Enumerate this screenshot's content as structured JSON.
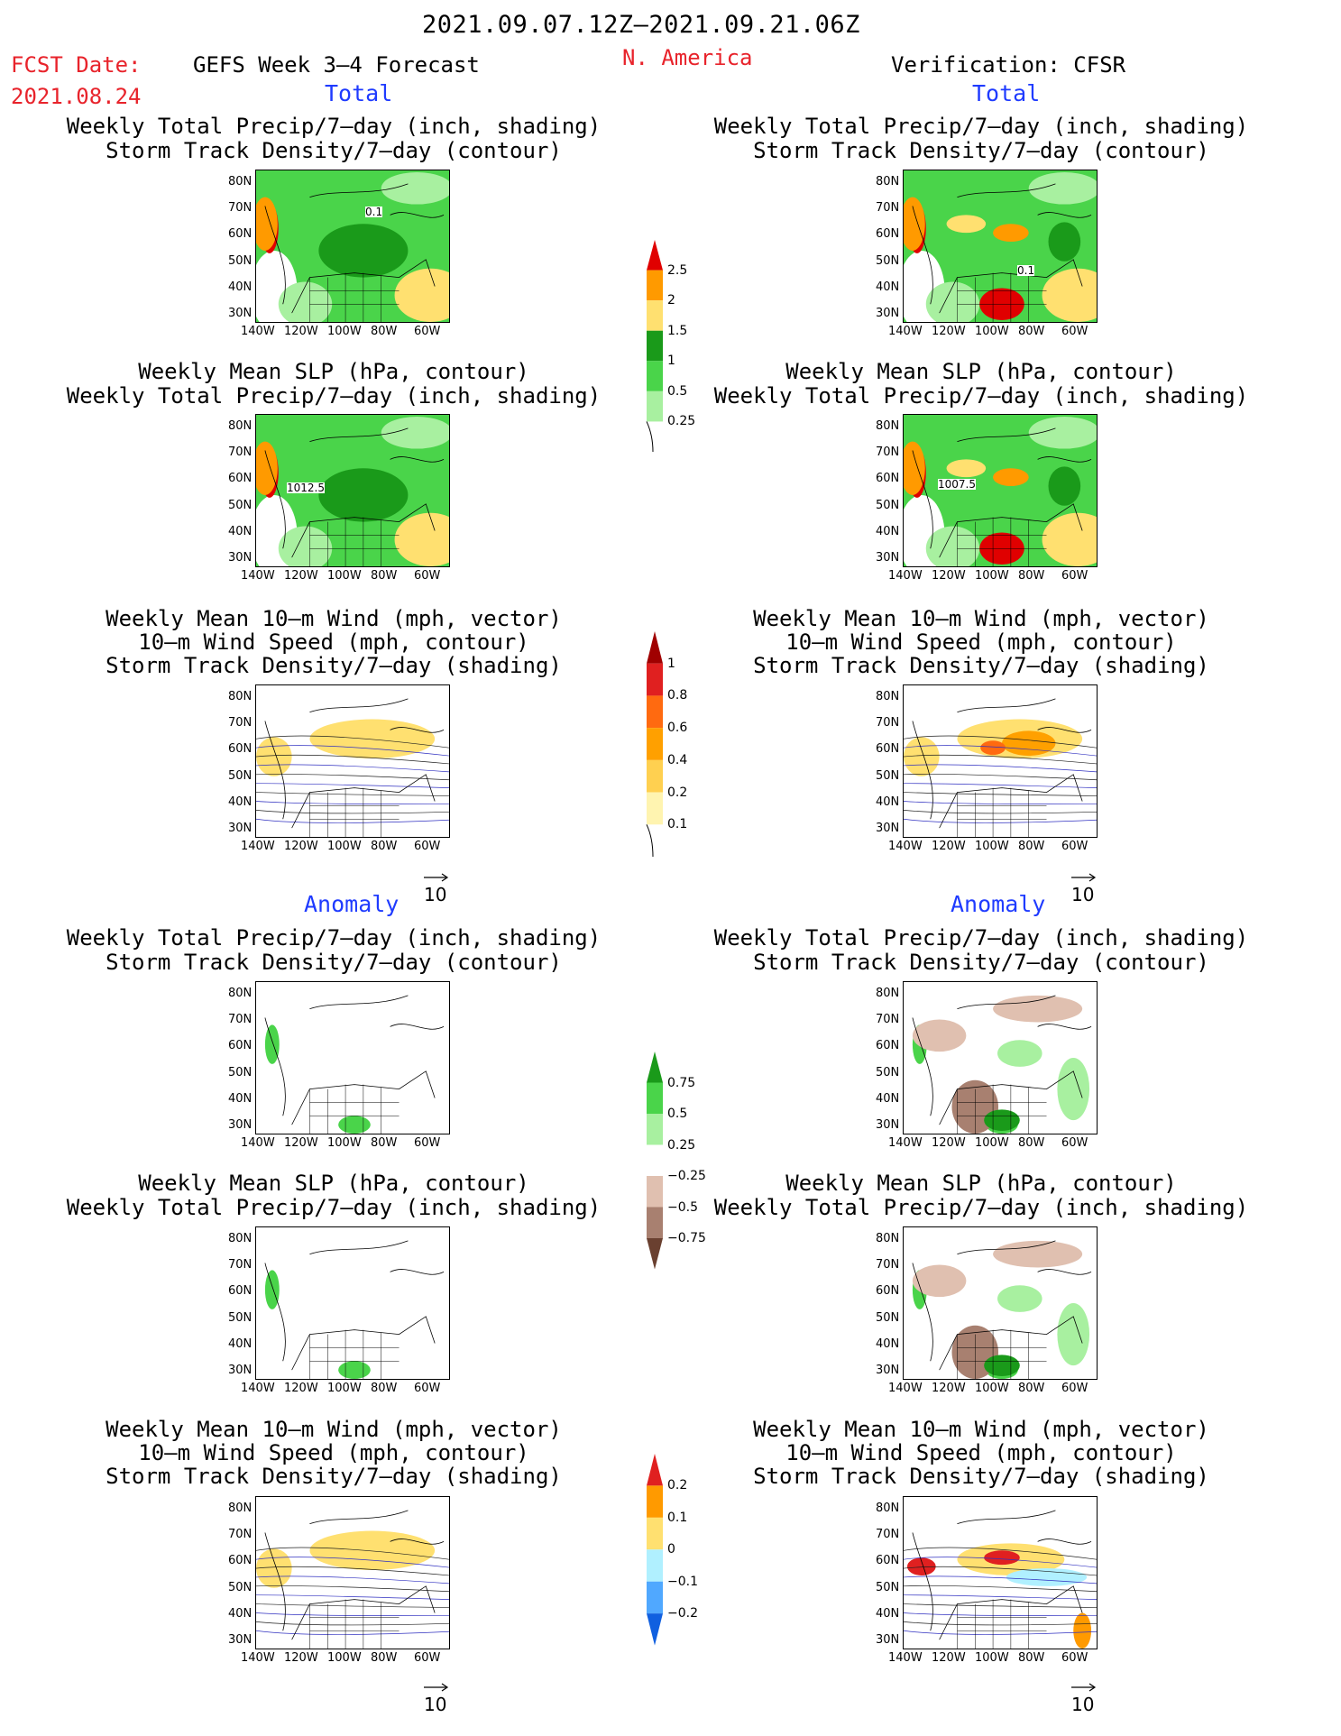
{
  "header": {
    "date_range": "2021.09.07.12Z–2021.09.21.06Z",
    "fcst_label": "FCST Date:",
    "fcst_date": "2021.08.24",
    "model_title": "GEFS Week 3–4 Forecast",
    "region": "N. America",
    "verification": "Verification: CFSR"
  },
  "sections": {
    "total": "Total",
    "anomaly": "Anomaly"
  },
  "titles": {
    "precip_storm": [
      "Weekly Total Precip/7–day (inch, shading)",
      "Storm Track Density/7–day (contour)"
    ],
    "slp_precip": [
      "Weekly Mean SLP (hPa, contour)",
      "Weekly Total Precip/7–day (inch, shading)"
    ],
    "wind_storm": [
      "Weekly Mean 10–m Wind (mph, vector)",
      "10–m Wind Speed (mph, contour)",
      "Storm Track Density/7–day (shading)"
    ]
  },
  "axes": {
    "lat_ticks": [
      "80N",
      "70N",
      "60N",
      "50N",
      "40N",
      "30N"
    ],
    "lon_ticks": [
      "140W",
      "120W",
      "100W",
      "80W",
      "60W"
    ]
  },
  "contour_labels": {
    "fcst_storm": "0.1",
    "verif_storm": "0.1",
    "fcst_slp": "1012.5",
    "verif_slp": "1007.5"
  },
  "vector_ref": "10",
  "colorbars": {
    "precip_total": {
      "labels": [
        "2.5",
        "2",
        "1.5",
        "1",
        "0.5",
        "0.25"
      ],
      "colors": [
        "#e00000",
        "#ff9a00",
        "#ffe070",
        "#1a9a1a",
        "#4ad44a",
        "#a8f0a0"
      ]
    },
    "storm_total": {
      "labels": [
        "1",
        "0.8",
        "0.6",
        "0.4",
        "0.2",
        "0.1"
      ],
      "colors": [
        "#a00000",
        "#e02020",
        "#ff6a10",
        "#ffa000",
        "#ffd050",
        "#fff4b0"
      ]
    },
    "precip_anom": {
      "labels": [
        "0.75",
        "0.5",
        "0.25",
        "−0.25",
        "−0.5",
        "−0.75"
      ],
      "colors": [
        "#1a9a1a",
        "#4ad44a",
        "#a8f0a0",
        "#ffffff",
        "#e0c0b0",
        "#a88070",
        "#6a4030"
      ]
    },
    "storm_anom": {
      "labels": [
        "0.2",
        "0.1",
        "0",
        "−0.1",
        "−0.2"
      ],
      "colors": [
        "#e02020",
        "#ff9a00",
        "#ffe070",
        "#b0f0ff",
        "#50a8ff",
        "#1060e0"
      ]
    }
  }
}
